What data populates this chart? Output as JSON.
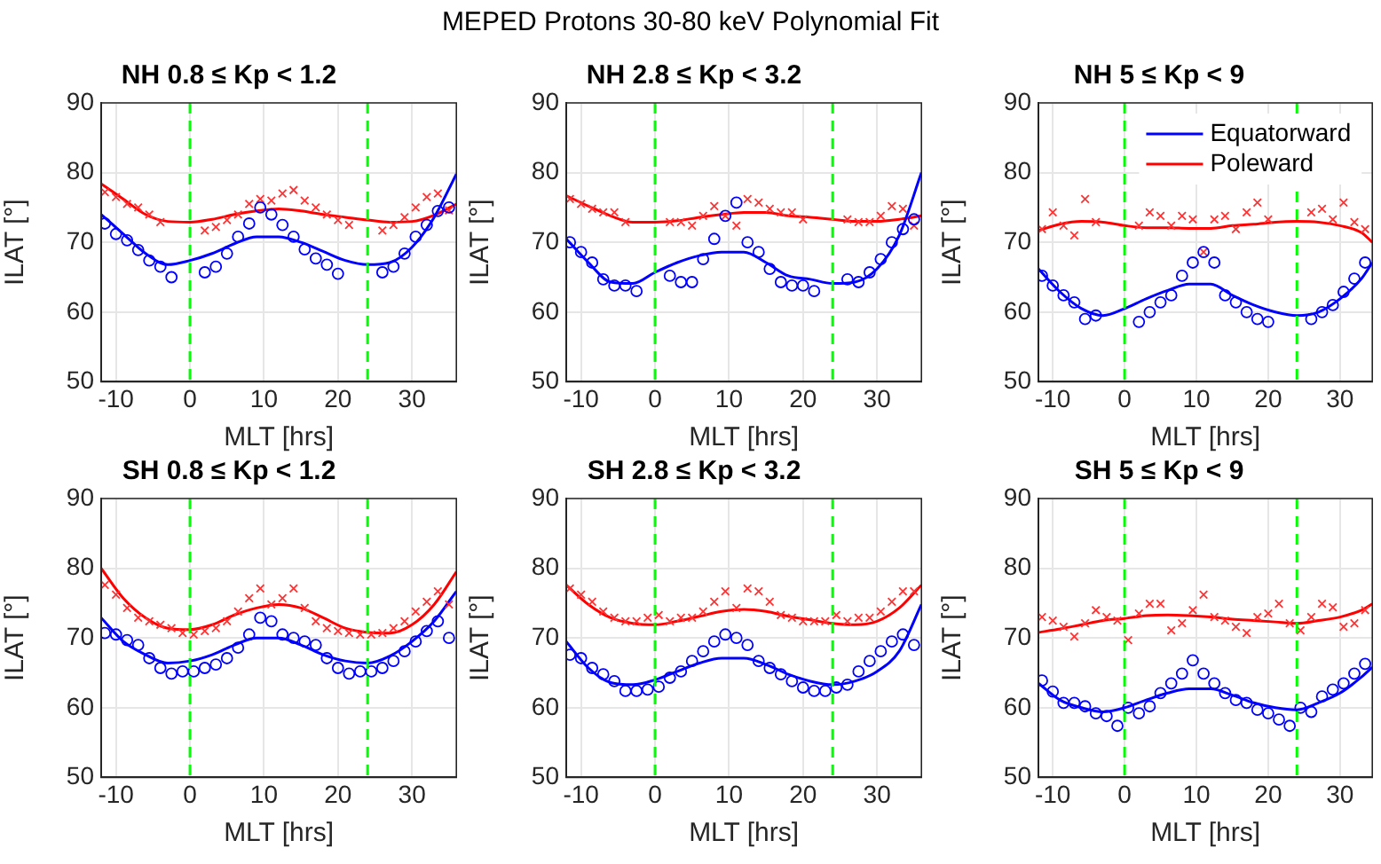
{
  "chart_data": [
    {
      "type": "scatter",
      "title": "NH 0.8 ≤ Kp < 1.2",
      "xlabel": "MLT [hrs]",
      "ylabel": "ILAT [°]",
      "annotations": [
        "MEPED Protons 30-80 keV Polynomial Fit"
      ],
      "xlim": [
        -12,
        36
      ],
      "xticks": [
        -10,
        0,
        10,
        20,
        30
      ],
      "ylim": [
        50,
        90
      ],
      "yticks": [
        50,
        60,
        70,
        80,
        90
      ],
      "grid": true,
      "legend": false,
      "ref_lines": [
        {
          "axis": "x",
          "value": 0,
          "color": "#00ff00",
          "line_style": "dashed"
        },
        {
          "axis": "x",
          "value": 24,
          "color": "#00ff00",
          "line_style": "dashed"
        }
      ],
      "x": [
        -11.5,
        -10,
        -8.5,
        -7,
        -5.5,
        -4,
        -2.5,
        -1,
        0.5,
        2,
        3.5,
        5,
        6.5,
        8,
        9.5,
        11,
        12.5,
        14,
        15.5,
        17,
        18.5,
        20,
        21.5,
        23,
        24.5,
        26,
        27.5,
        29,
        30.5,
        32,
        33.5,
        35
      ],
      "series": [
        {
          "type": "scatter",
          "marker": "circle",
          "color": "#0000ff",
          "values": [
            72.7,
            71.2,
            70.3,
            68.9,
            67.4,
            66.5,
            65,
            null,
            null,
            65.7,
            66.5,
            68.4,
            70.8,
            72.7,
            75,
            74,
            72.5,
            70.8,
            69,
            67.7,
            66.8,
            65.5,
            null,
            null,
            null,
            65.7,
            66.5,
            68.4,
            70.8,
            72.5,
            74.5,
            75
          ]
        },
        {
          "type": "scatter",
          "marker": "cross",
          "color": "#ff3333",
          "values": [
            77.2,
            76.5,
            75.5,
            75,
            74,
            72.9,
            null,
            null,
            null,
            71.7,
            72.2,
            73.2,
            74,
            75.5,
            76.2,
            76,
            77,
            77.5,
            76,
            75,
            74,
            73.2,
            72.5,
            null,
            null,
            71.7,
            72.5,
            73.6,
            75,
            76.5,
            77,
            74.6
          ]
        },
        {
          "type": "line",
          "marker": "none",
          "color": "#0000ff",
          "x": [
            -12,
            -9,
            -6,
            -3,
            0,
            3,
            6,
            9,
            12,
            15,
            18,
            21,
            24,
            27,
            30,
            33,
            36
          ],
          "values": [
            74,
            71.2,
            68.4,
            66.8,
            67.4,
            68.4,
            69.8,
            70.8,
            70.8,
            70,
            68.7,
            67.4,
            66.8,
            67.1,
            69.3,
            73.6,
            79.8
          ]
        },
        {
          "type": "line",
          "marker": "none",
          "color": "#ff0000",
          "x": [
            -12,
            -9,
            -6,
            -3,
            0,
            3,
            6,
            9,
            12,
            15,
            18,
            21,
            24,
            27,
            30,
            33,
            36
          ],
          "values": [
            78.4,
            76.2,
            74,
            73,
            72.9,
            73.3,
            74,
            74.5,
            74.8,
            74.5,
            74,
            73.6,
            73.2,
            72.9,
            73,
            73.9,
            75.5
          ]
        }
      ]
    },
    {
      "type": "scatter",
      "title": "NH 2.8 ≤ Kp < 3.2",
      "xlabel": "MLT [hrs]",
      "ylabel": "ILAT [°]",
      "xlim": [
        -12,
        36
      ],
      "xticks": [
        -10,
        0,
        10,
        20,
        30
      ],
      "ylim": [
        50,
        90
      ],
      "yticks": [
        50,
        60,
        70,
        80,
        90
      ],
      "grid": true,
      "legend": false,
      "ref_lines": [
        {
          "axis": "x",
          "value": 0,
          "color": "#00ff00",
          "line_style": "dashed"
        },
        {
          "axis": "x",
          "value": 24,
          "color": "#00ff00",
          "line_style": "dashed"
        }
      ],
      "x": [
        -11.5,
        -10,
        -8.5,
        -7,
        -5.5,
        -4,
        -2.5,
        -1,
        0.5,
        2,
        3.5,
        5,
        6.5,
        8,
        9.5,
        11,
        12.5,
        14,
        15.5,
        17,
        18.5,
        20,
        21.5,
        23,
        24.5,
        26,
        27.5,
        29,
        30.5,
        32,
        33.5,
        35
      ],
      "series": [
        {
          "type": "scatter",
          "marker": "circle",
          "color": "#0000ff",
          "values": [
            70,
            68.6,
            67.1,
            64.7,
            63.8,
            63.8,
            63,
            null,
            null,
            65.2,
            64.3,
            64.3,
            67.6,
            70.5,
            73.8,
            75.7,
            70,
            68.6,
            66.2,
            64.3,
            63.8,
            63.8,
            63,
            null,
            null,
            64.7,
            64.3,
            65.7,
            67.6,
            70,
            71.9,
            73.3
          ]
        },
        {
          "type": "scatter",
          "marker": "cross",
          "color": "#ff3333",
          "values": [
            76.2,
            75.5,
            74.8,
            74.3,
            74.3,
            72.9,
            null,
            null,
            null,
            72.9,
            72.9,
            72.4,
            73.8,
            75.2,
            73.8,
            72.4,
            76.2,
            75.7,
            74.8,
            74.3,
            74.3,
            73.3,
            null,
            null,
            null,
            73.3,
            72.9,
            72.9,
            73.8,
            75.2,
            74.8,
            72.4
          ]
        },
        {
          "type": "line",
          "marker": "none",
          "color": "#0000ff",
          "x": [
            -12,
            -9,
            -6,
            -3,
            0,
            3,
            6,
            9,
            12,
            15,
            18,
            21,
            24,
            27,
            30,
            33,
            36
          ],
          "values": [
            70.5,
            67.1,
            64.3,
            64.1,
            65.7,
            67.1,
            68.1,
            68.6,
            68.6,
            67.1,
            65.2,
            64.7,
            64.1,
            64.3,
            66.2,
            71,
            80
          ]
        },
        {
          "type": "line",
          "marker": "none",
          "color": "#ff0000",
          "x": [
            -12,
            -9,
            -6,
            -3,
            0,
            3,
            6,
            9,
            12,
            15,
            18,
            21,
            24,
            27,
            30,
            33,
            36
          ],
          "values": [
            76.7,
            75.2,
            73.8,
            72.9,
            72.9,
            73.1,
            73.6,
            74,
            74.3,
            74.3,
            73.8,
            73.6,
            73.3,
            73,
            73,
            73.3,
            73.8
          ]
        }
      ]
    },
    {
      "type": "scatter",
      "title": "NH 5 ≤ Kp < 9",
      "xlabel": "MLT [hrs]",
      "ylabel": "ILAT [°]",
      "xlim": [
        -12,
        34.5
      ],
      "xticks": [
        -10,
        0,
        10,
        20,
        30
      ],
      "ylim": [
        50,
        90
      ],
      "yticks": [
        50,
        60,
        70,
        80,
        90
      ],
      "grid": true,
      "legend": "top right",
      "ref_lines": [
        {
          "axis": "x",
          "value": 0,
          "color": "#00ff00",
          "line_style": "dashed"
        },
        {
          "axis": "x",
          "value": 24,
          "color": "#00ff00",
          "line_style": "dashed"
        }
      ],
      "x": [
        -11.5,
        -10,
        -8.5,
        -7,
        -5.5,
        -4,
        -2.5,
        -1,
        0.5,
        2,
        3.5,
        5,
        6.5,
        8,
        9.5,
        11,
        12.5,
        14,
        15.5,
        17,
        18.5,
        20,
        21.5,
        23,
        24.5,
        26,
        27.5,
        29,
        30.5,
        32,
        33.5
      ],
      "series": [
        {
          "type": "scatter",
          "marker": "circle",
          "color": "#0000ff",
          "values": [
            65.2,
            63.8,
            62.4,
            61.4,
            59,
            59.5,
            null,
            null,
            null,
            58.6,
            60,
            61.4,
            62.4,
            65.2,
            67.1,
            68.6,
            67.1,
            62.4,
            61.4,
            60,
            59,
            58.6,
            null,
            null,
            null,
            59,
            60,
            61,
            62.9,
            64.8,
            67.1
          ]
        },
        {
          "type": "scatter",
          "marker": "cross",
          "color": "#ff3333",
          "values": [
            71.9,
            74.3,
            72.4,
            71,
            76.2,
            72.9,
            null,
            null,
            null,
            72.4,
            74.3,
            73.8,
            72.4,
            73.8,
            73.3,
            68.6,
            73.3,
            73.8,
            71.9,
            74.3,
            75.7,
            73.3,
            null,
            null,
            null,
            74.3,
            74.8,
            73.3,
            75.7,
            72.9,
            71.9
          ]
        },
        {
          "type": "line",
          "name": "Equatorward",
          "marker": "none",
          "color": "#0000ff",
          "x": [
            -12,
            -9,
            -6,
            -3,
            0,
            3,
            6,
            9,
            12,
            15,
            18,
            21,
            24,
            27,
            30,
            33,
            34.5
          ],
          "values": [
            66.2,
            62.9,
            60.5,
            59.5,
            60.5,
            61.9,
            63.1,
            64,
            64,
            62.4,
            61,
            60,
            59.5,
            60,
            61.9,
            64.8,
            67.1
          ]
        },
        {
          "type": "line",
          "name": "Poleward",
          "marker": "none",
          "color": "#ff0000",
          "x": [
            -12,
            -9,
            -6,
            -3,
            0,
            3,
            6,
            9,
            12,
            15,
            18,
            21,
            24,
            27,
            30,
            33,
            34.5
          ],
          "values": [
            71.7,
            72.6,
            73,
            72.9,
            72.4,
            72.1,
            72.1,
            72,
            72,
            72.4,
            72.6,
            72.9,
            73,
            72.9,
            72.4,
            71.4,
            70
          ]
        }
      ]
    },
    {
      "type": "scatter",
      "title": "SH 0.8 ≤ Kp < 1.2",
      "xlabel": "MLT [hrs]",
      "ylabel": "ILAT [°]",
      "xlim": [
        -12,
        36
      ],
      "xticks": [
        -10,
        0,
        10,
        20,
        30
      ],
      "ylim": [
        50,
        90
      ],
      "yticks": [
        50,
        60,
        70,
        80,
        90
      ],
      "grid": true,
      "legend": false,
      "ref_lines": [
        {
          "axis": "x",
          "value": 0,
          "color": "#00ff00",
          "line_style": "dashed"
        },
        {
          "axis": "x",
          "value": 24,
          "color": "#00ff00",
          "line_style": "dashed"
        }
      ],
      "x": [
        -11.5,
        -10,
        -8.5,
        -7,
        -5.5,
        -4,
        -2.5,
        -1,
        0.5,
        2,
        3.5,
        5,
        6.5,
        8,
        9.5,
        11,
        12.5,
        14,
        15.5,
        17,
        18.5,
        20,
        21.5,
        23,
        24.5,
        26,
        27.5,
        29,
        30.5,
        32,
        33.5,
        35
      ],
      "series": [
        {
          "type": "scatter",
          "marker": "circle",
          "color": "#0000ff",
          "values": [
            70.7,
            70.5,
            69.7,
            69,
            67.1,
            65.7,
            64.9,
            65.2,
            65.2,
            65.7,
            66.2,
            67.1,
            68.6,
            70.5,
            72.9,
            72.4,
            70.5,
            70,
            69.5,
            69,
            67.1,
            65.7,
            64.9,
            65.2,
            65.2,
            65.7,
            66.7,
            68.1,
            69.5,
            71,
            72.4,
            70
          ]
        },
        {
          "type": "scatter",
          "marker": "cross",
          "color": "#ff3333",
          "values": [
            77.6,
            76.2,
            74.3,
            72.9,
            72.4,
            71.9,
            71.4,
            70.7,
            70.5,
            71,
            71.4,
            72.4,
            73.8,
            75.7,
            77.1,
            74.8,
            75.7,
            77.1,
            74.3,
            72.4,
            71.4,
            71,
            70.7,
            70.5,
            70.5,
            70.7,
            71.4,
            72.4,
            73.8,
            75.2,
            76.7,
            74.8
          ]
        },
        {
          "type": "line",
          "marker": "none",
          "color": "#0000ff",
          "x": [
            -12,
            -9,
            -6,
            -3,
            0,
            3,
            6,
            9,
            12,
            15,
            18,
            21,
            24,
            27,
            30,
            33,
            36
          ],
          "values": [
            72.9,
            69.5,
            67.6,
            66.4,
            66.7,
            67.6,
            69,
            70,
            70,
            69,
            67.6,
            66.7,
            66.4,
            67.4,
            69.5,
            72.4,
            76.7
          ]
        },
        {
          "type": "line",
          "marker": "none",
          "color": "#ff0000",
          "x": [
            -12,
            -9,
            -6,
            -3,
            0,
            3,
            6,
            9,
            12,
            15,
            18,
            21,
            24,
            27,
            30,
            33,
            36
          ],
          "values": [
            80,
            75.7,
            72.9,
            71.4,
            71.2,
            71.9,
            73.3,
            74.3,
            74.8,
            74.3,
            72.9,
            71.4,
            70.8,
            70.7,
            71.9,
            74.8,
            79.5
          ]
        }
      ]
    },
    {
      "type": "scatter",
      "title": "SH 2.8 ≤ Kp < 3.2",
      "xlabel": "MLT [hrs]",
      "ylabel": "ILAT [°]",
      "xlim": [
        -12,
        36
      ],
      "xticks": [
        -10,
        0,
        10,
        20,
        30
      ],
      "ylim": [
        50,
        90
      ],
      "yticks": [
        50,
        60,
        70,
        80,
        90
      ],
      "grid": true,
      "legend": false,
      "ref_lines": [
        {
          "axis": "x",
          "value": 0,
          "color": "#00ff00",
          "line_style": "dashed"
        },
        {
          "axis": "x",
          "value": 24,
          "color": "#00ff00",
          "line_style": "dashed"
        }
      ],
      "x": [
        -11.5,
        -10,
        -8.5,
        -7,
        -5.5,
        -4,
        -2.5,
        -1,
        0.5,
        2,
        3.5,
        5,
        6.5,
        8,
        9.5,
        11,
        12.5,
        14,
        15.5,
        17,
        18.5,
        20,
        21.5,
        23,
        24.5,
        26,
        27.5,
        29,
        30.5,
        32,
        33.5,
        35
      ],
      "series": [
        {
          "type": "scatter",
          "marker": "circle",
          "color": "#0000ff",
          "values": [
            67.6,
            67.1,
            65.7,
            64.8,
            63.8,
            62.4,
            62.4,
            62.6,
            63,
            64.3,
            65.2,
            66.7,
            68.1,
            69.5,
            70.5,
            70,
            69,
            66.7,
            65.7,
            64.8,
            63.8,
            62.9,
            62.4,
            62.4,
            62.9,
            63.3,
            65.2,
            66.7,
            68.1,
            69.5,
            70.5,
            69
          ]
        },
        {
          "type": "scatter",
          "marker": "cross",
          "color": "#ff3333",
          "values": [
            77.1,
            76.2,
            75.2,
            73.8,
            72.9,
            72.4,
            72.4,
            72.9,
            73.3,
            72.4,
            72.9,
            72.9,
            73.8,
            75.2,
            76.7,
            74.3,
            77.1,
            76.7,
            75.2,
            73.3,
            72.9,
            72.4,
            72.4,
            72.4,
            73.3,
            72.4,
            72.9,
            72.9,
            73.8,
            75.2,
            76.7,
            76.7
          ]
        },
        {
          "type": "line",
          "marker": "none",
          "color": "#0000ff",
          "x": [
            -12,
            -9,
            -6,
            -3,
            0,
            3,
            6,
            9,
            12,
            15,
            18,
            21,
            24,
            27,
            30,
            33,
            36
          ],
          "values": [
            69.5,
            65.7,
            63.6,
            63.3,
            64,
            65.2,
            66.4,
            67.1,
            67.1,
            66.2,
            64.8,
            63.8,
            63.3,
            63.8,
            65.2,
            68.1,
            74.8
          ]
        },
        {
          "type": "line",
          "marker": "none",
          "color": "#ff0000",
          "x": [
            -12,
            -9,
            -6,
            -3,
            0,
            3,
            6,
            9,
            12,
            15,
            18,
            21,
            24,
            27,
            30,
            33,
            36
          ],
          "values": [
            77.6,
            74.8,
            72.9,
            72.1,
            71.9,
            72.4,
            73.1,
            73.8,
            74.1,
            73.8,
            73.1,
            72.6,
            72.1,
            71.9,
            72.4,
            74.3,
            77.6
          ]
        }
      ]
    },
    {
      "type": "scatter",
      "title": "SH 5 ≤ Kp < 9",
      "xlabel": "MLT [hrs]",
      "ylabel": "ILAT [°]",
      "xlim": [
        -12,
        34.5
      ],
      "xticks": [
        -10,
        0,
        10,
        20,
        30
      ],
      "ylim": [
        50,
        90
      ],
      "yticks": [
        50,
        60,
        70,
        80,
        90
      ],
      "grid": true,
      "legend": false,
      "ref_lines": [
        {
          "axis": "x",
          "value": 0,
          "color": "#00ff00",
          "line_style": "dashed"
        },
        {
          "axis": "x",
          "value": 24,
          "color": "#00ff00",
          "line_style": "dashed"
        }
      ],
      "x": [
        -11.5,
        -10,
        -8.5,
        -7,
        -5.5,
        -4,
        -2.5,
        -1,
        0.5,
        2,
        3.5,
        5,
        6.5,
        8,
        9.5,
        11,
        12.5,
        14,
        15.5,
        17,
        18.5,
        20,
        21.5,
        23,
        24.5,
        26,
        27.5,
        29,
        30.5,
        32,
        33.5
      ],
      "series": [
        {
          "type": "scatter",
          "marker": "circle",
          "color": "#0000ff",
          "values": [
            63.9,
            62.3,
            60.7,
            60.7,
            60.2,
            59.2,
            58.8,
            57.4,
            60,
            59.2,
            60.2,
            62.1,
            63.5,
            64.9,
            66.8,
            64.9,
            63.5,
            62.1,
            61.1,
            60.7,
            59.7,
            59.2,
            58.3,
            57.4,
            60,
            59.4,
            61.6,
            62.6,
            63.5,
            64.9,
            66.3
          ]
        },
        {
          "type": "scatter",
          "marker": "cross",
          "color": "#ff3333",
          "values": [
            73,
            72.5,
            71.6,
            70.2,
            72.1,
            74,
            73,
            72.5,
            69.7,
            73.5,
            74.9,
            74.9,
            71.1,
            72.1,
            74,
            76.2,
            73,
            72.5,
            71.6,
            70.7,
            73,
            73.5,
            74.9,
            72.1,
            71.1,
            73,
            74.9,
            74.4,
            71.6,
            72.1,
            74
          ]
        },
        {
          "type": "line",
          "marker": "none",
          "color": "#0000ff",
          "x": [
            -12,
            -9,
            -6,
            -3,
            0,
            3,
            6,
            9,
            12,
            15,
            18,
            21,
            24,
            27,
            30,
            33,
            34.5
          ],
          "values": [
            63.5,
            61.1,
            60,
            59.4,
            60,
            61.1,
            62.1,
            62.7,
            62.7,
            61.8,
            60.7,
            60,
            59.7,
            60.7,
            62.1,
            64.4,
            65.8
          ]
        },
        {
          "type": "line",
          "marker": "none",
          "color": "#ff0000",
          "x": [
            -12,
            -9,
            -6,
            -3,
            0,
            3,
            6,
            9,
            12,
            15,
            18,
            21,
            24,
            27,
            30,
            33,
            34.5
          ],
          "values": [
            70.8,
            71.3,
            71.9,
            72.5,
            72.8,
            73.2,
            73.3,
            73.2,
            73,
            72.7,
            72.5,
            72.3,
            72.1,
            72.5,
            73,
            74,
            74.9
          ]
        }
      ]
    }
  ]
}
